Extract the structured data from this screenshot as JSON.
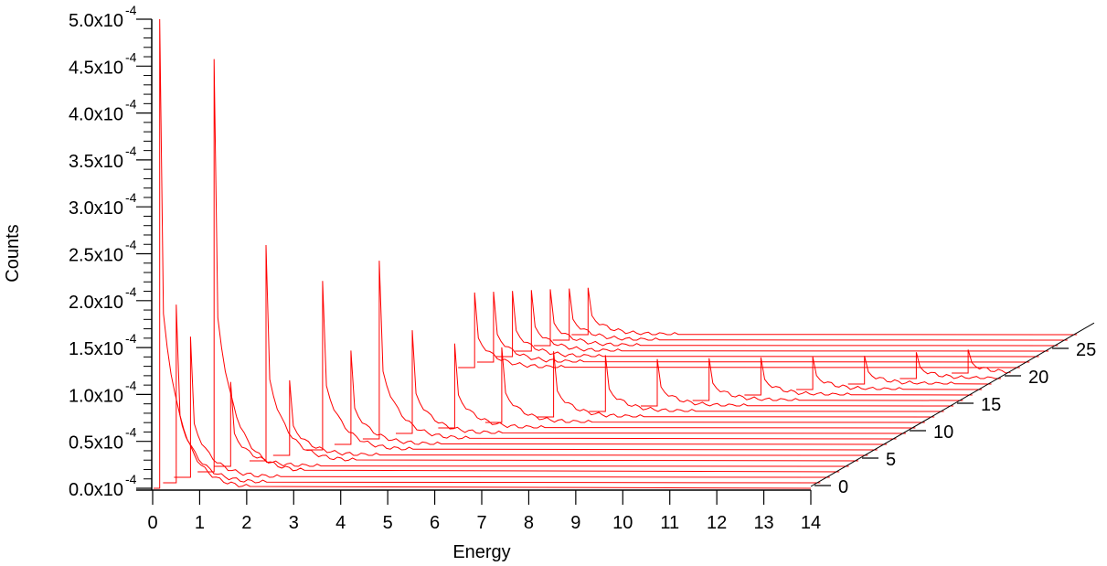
{
  "chart_data": {
    "type": "line",
    "subtype": "waterfall-3d",
    "title": "",
    "xlabel": "Energy",
    "ylabel": "Counts",
    "zlabel": "",
    "xlim": [
      0,
      14
    ],
    "ylim": [
      0.0,
      5.0
    ],
    "y_scale_exponent": -4,
    "x_ticks": [
      "0",
      "1",
      "2",
      "3",
      "4",
      "5",
      "6",
      "7",
      "8",
      "9",
      "10",
      "11",
      "12",
      "13",
      "14"
    ],
    "y_ticks": [
      {
        "mantissa": "0.0x10",
        "exp": "-4",
        "value": 0.0
      },
      {
        "mantissa": "0.5x10",
        "exp": "-4",
        "value": 0.5
      },
      {
        "mantissa": "1.0x10",
        "exp": "-4",
        "value": 1.0
      },
      {
        "mantissa": "1.5x10",
        "exp": "-4",
        "value": 1.5
      },
      {
        "mantissa": "2.0x10",
        "exp": "-4",
        "value": 2.0
      },
      {
        "mantissa": "2.5x10",
        "exp": "-4",
        "value": 2.5
      },
      {
        "mantissa": "3.0x10",
        "exp": "-4",
        "value": 3.0
      },
      {
        "mantissa": "3.5x10",
        "exp": "-4",
        "value": 3.5
      },
      {
        "mantissa": "4.0x10",
        "exp": "-4",
        "value": 4.0
      },
      {
        "mantissa": "4.5x10",
        "exp": "-4",
        "value": 4.5
      },
      {
        "mantissa": "5.0x10",
        "exp": "-4",
        "value": 5.0
      }
    ],
    "z_ticks": [
      "0",
      "5",
      "10",
      "15",
      "20",
      "25"
    ],
    "zlim": [
      0,
      28
    ],
    "line_color": "#ff0000",
    "axis_color": "#000000",
    "grid": false,
    "legend": null,
    "series_note": "29 stacked spectra (index 0-28). Each trace is offset along the depth axis; each has a sharp edge/peak whose energy position increases with index, followed by a decaying tail and flat baseline to 14.",
    "series": [
      {
        "name": "0",
        "peak_energy": 0.15,
        "peak_counts": 5.0
      },
      {
        "name": "1",
        "peak_energy": 0.3,
        "peak_counts": 1.9
      },
      {
        "name": "2",
        "peak_energy": 0.4,
        "peak_counts": 1.5
      },
      {
        "name": "3",
        "peak_energy": 0.7,
        "peak_counts": 4.4
      },
      {
        "name": "4",
        "peak_energy": 0.85,
        "peak_counts": 0.9
      },
      {
        "name": "5",
        "peak_energy": 1.4,
        "peak_counts": 2.3
      },
      {
        "name": "6",
        "peak_energy": 1.7,
        "peak_counts": 0.8
      },
      {
        "name": "7",
        "peak_energy": 2.2,
        "peak_counts": 1.8
      },
      {
        "name": "8",
        "peak_energy": 2.6,
        "peak_counts": 1.0
      },
      {
        "name": "9",
        "peak_energy": 3.0,
        "peak_counts": 1.9
      },
      {
        "name": "10",
        "peak_energy": 3.5,
        "peak_counts": 1.1
      },
      {
        "name": "11",
        "peak_energy": 4.2,
        "peak_counts": 0.9
      },
      {
        "name": "12",
        "peak_energy": 5.0,
        "peak_counts": 0.8
      },
      {
        "name": "13",
        "peak_energy": 5.9,
        "peak_counts": 0.7
      },
      {
        "name": "14",
        "peak_energy": 6.8,
        "peak_counts": 0.6
      },
      {
        "name": "15",
        "peak_energy": 7.7,
        "peak_counts": 0.5
      },
      {
        "name": "16",
        "peak_energy": 8.6,
        "peak_counts": 0.45
      },
      {
        "name": "17",
        "peak_energy": 9.5,
        "peak_counts": 0.4
      },
      {
        "name": "18",
        "peak_energy": 10.4,
        "peak_counts": 0.35
      },
      {
        "name": "19",
        "peak_energy": 11.3,
        "peak_counts": 0.3
      },
      {
        "name": "20",
        "peak_energy": 12.2,
        "peak_counts": 0.28
      },
      {
        "name": "21",
        "peak_energy": 13.1,
        "peak_counts": 0.25
      },
      {
        "name": "22",
        "peak_energy": 2.4,
        "peak_counts": 0.8
      },
      {
        "name": "23",
        "peak_energy": 2.6,
        "peak_counts": 0.75
      },
      {
        "name": "24",
        "peak_energy": 2.8,
        "peak_counts": 0.7
      },
      {
        "name": "25",
        "peak_energy": 3.0,
        "peak_counts": 0.65
      },
      {
        "name": "26",
        "peak_energy": 3.2,
        "peak_counts": 0.6
      },
      {
        "name": "27",
        "peak_energy": 3.4,
        "peak_counts": 0.55
      },
      {
        "name": "28",
        "peak_energy": 3.6,
        "peak_counts": 0.5
      }
    ]
  },
  "labels": {
    "xlabel": "Energy",
    "ylabel": "Counts"
  }
}
